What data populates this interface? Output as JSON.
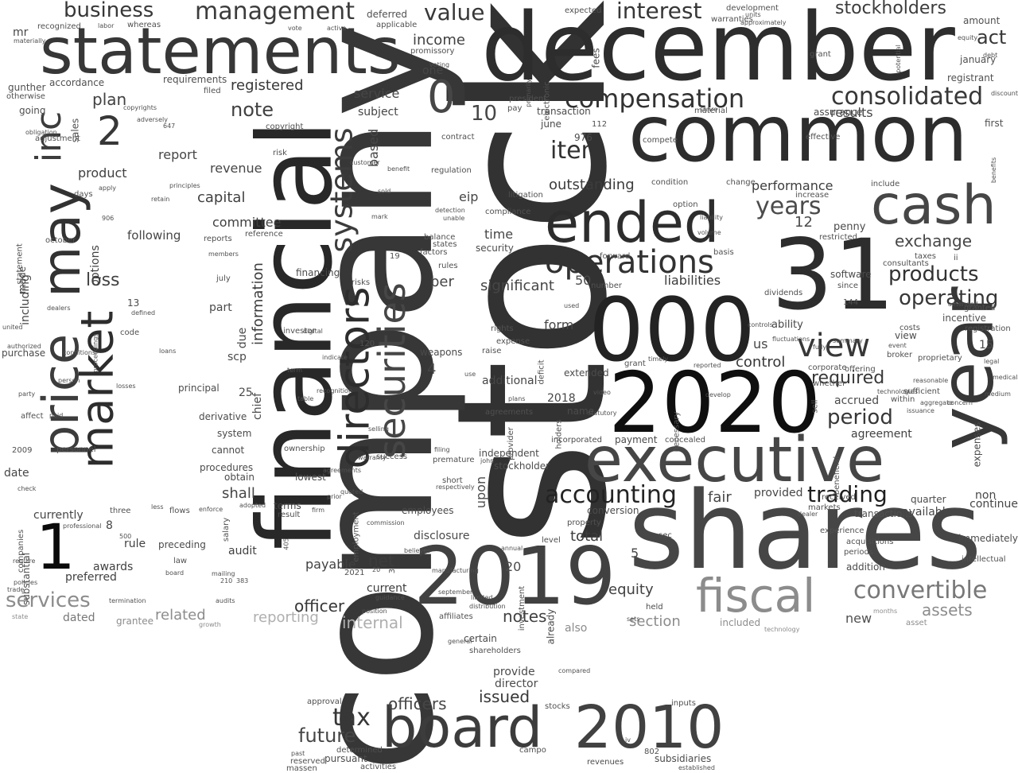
{
  "words": [
    "stock",
    "company",
    "december",
    "financial",
    "shares",
    "common",
    "31",
    "000",
    "statements",
    "2020",
    "2019",
    "year",
    "price",
    "executive",
    "may",
    "board",
    "2010",
    "cash",
    "ended",
    "directors",
    "market",
    "fiscal",
    "operations",
    "securities",
    "inc",
    "systems",
    "1",
    "view",
    "accounting",
    "compensation",
    "consolidated",
    "trading",
    "management",
    "business",
    "value",
    "interest",
    "stockholders",
    "convertible",
    "products",
    "operating",
    "period",
    "tax",
    "future",
    "officers",
    "issued",
    "item",
    "required",
    "2",
    "0",
    "10",
    "years",
    "exchange",
    "liabilities",
    "loss",
    "control",
    "equity",
    "notes",
    "total",
    "services",
    "related",
    "reporting",
    "internal",
    "officer",
    "registered",
    "note",
    "plan",
    "income",
    "product",
    "capital",
    "committee",
    "revenue",
    "report",
    "following",
    "information",
    "outstanding",
    "performance",
    "penny",
    "agreement",
    "fair",
    "provided",
    "non",
    "transactions",
    "available",
    "assets",
    "section",
    "new",
    "also",
    "net",
    "payable",
    "current",
    "audit",
    "rule",
    "awards",
    "preferred",
    "dated",
    "shall",
    "act",
    "results",
    "per",
    "significant",
    "time",
    "security",
    "form",
    "additional",
    "us",
    "ability",
    "incentive",
    "registration",
    "continue",
    "expenses",
    "service",
    "subject",
    "based",
    "eip",
    "one",
    "sales",
    "days",
    "options",
    "including",
    "made",
    "statement",
    "date",
    "currently",
    "preceding",
    "scp",
    "due",
    "part",
    "chief",
    "procedures",
    "principal",
    "derivative",
    "system",
    "cannot",
    "obtain",
    "lowest",
    "terms",
    "result",
    "disclosure",
    "employees",
    "upon",
    "provide",
    "director",
    "certain",
    "shareholders",
    "subsidiaries",
    "pursuant",
    "revenues",
    "activities",
    "accrued",
    "within",
    "payment",
    "concealed",
    "extended",
    "independent",
    "stockholder",
    "conversion",
    "incorporated",
    "sec",
    "held",
    "january",
    "amount",
    "registrant",
    "first",
    "expected",
    "fees",
    "warranties",
    "development",
    "units",
    "approximately",
    "requirements",
    "filed",
    "accordance",
    "otherwise",
    "going",
    "gunther",
    "mr",
    "materially",
    "recognized",
    "deferred",
    "applicable",
    "promissory",
    "balance",
    "states",
    "factors",
    "rules",
    "risks",
    "financing",
    "july",
    "reports",
    "members",
    "reference",
    "october",
    "investor",
    "weapons",
    "rights",
    "expense",
    "raise",
    "agreements",
    "quarter",
    "markets",
    "offering",
    "broker",
    "event",
    "proprietary",
    "sufficient",
    "grant",
    "dealer",
    "beneficial",
    "acquisitions",
    "immediately",
    "addition",
    "intellectual",
    "level",
    "property",
    "adopted",
    "law",
    "salary",
    "employment",
    "commission",
    "personnel",
    "check",
    "companies",
    "substantial",
    "require",
    "purchase",
    "affect",
    "paid",
    "conditions",
    "person",
    "code",
    "losses",
    "party",
    "united",
    "authorized",
    "view",
    "enforce",
    "flows",
    "three",
    "less",
    "professional",
    "approval",
    "inputs",
    "stocks",
    "campo",
    "determined",
    "reserved",
    "past",
    "massen",
    "established",
    "iv",
    "802",
    "2009",
    "2018",
    "2021",
    "8",
    "12",
    "13",
    "20",
    "25",
    "50",
    "144",
    "5",
    "4",
    "3",
    "15",
    "20",
    "19",
    "120",
    "210",
    "383",
    "405",
    "500",
    "906",
    "647",
    "976",
    "112",
    "june",
    "compete",
    "condition",
    "change",
    "include",
    "effective",
    "assurance",
    "increase",
    "restricted",
    "consultants",
    "taxes",
    "ii",
    "software",
    "since",
    "basis",
    "dividends",
    "forward",
    "number",
    "used",
    "amended",
    "granted",
    "costs",
    "controls",
    "fluctuations",
    "corporate",
    "sell",
    "whether",
    "received",
    "experience",
    "periods",
    "months",
    "asset",
    "grantee",
    "growth",
    "state",
    "technology",
    "included",
    "annual",
    "affiliates",
    "september",
    "limited",
    "investment",
    "already",
    "deficit",
    "holders",
    "necessary",
    "option",
    "liability",
    "material",
    "share",
    "grant",
    "equity",
    "discount",
    "debt",
    "risk",
    "copyright",
    "vote",
    "active",
    "labor",
    "whereas",
    "customer",
    "regulation",
    "sold",
    "mark",
    "benefit",
    "contract",
    "president",
    "pay",
    "transaction",
    "litigation",
    "compliance",
    "detection",
    "unable",
    "voting",
    "use",
    "plans",
    "provider",
    "john",
    "short",
    "success",
    "quoted",
    "prior",
    "agreements",
    "ownership",
    "firm",
    "term",
    "indicate",
    "table",
    "name",
    "develop",
    "video",
    "statutory",
    "technologies",
    "reasonable",
    "concern",
    "aggregate",
    "issuance",
    "volume",
    "principles",
    "adjustment",
    "retain",
    "defined",
    "apply",
    "proceedings",
    "copyrights",
    "adversely",
    "obligation",
    "digital",
    "recognition",
    "warranty",
    "selling",
    "filing",
    "premature",
    "respectively",
    "believes",
    "manufacturing",
    "guidance",
    "distribution",
    "reported",
    "timely",
    "fully",
    "summary",
    "primarily",
    "electronic",
    "potential",
    "benefits",
    "medical",
    "medium",
    "legal",
    "trade",
    "policies",
    "termination",
    "audits",
    "mailing",
    "board",
    "dealers",
    "loans",
    "position",
    "general",
    "compared",
    "sets",
    "valuation",
    "issued",
    "purposes",
    "certain",
    "records",
    "plus",
    "late"
  ]
}
